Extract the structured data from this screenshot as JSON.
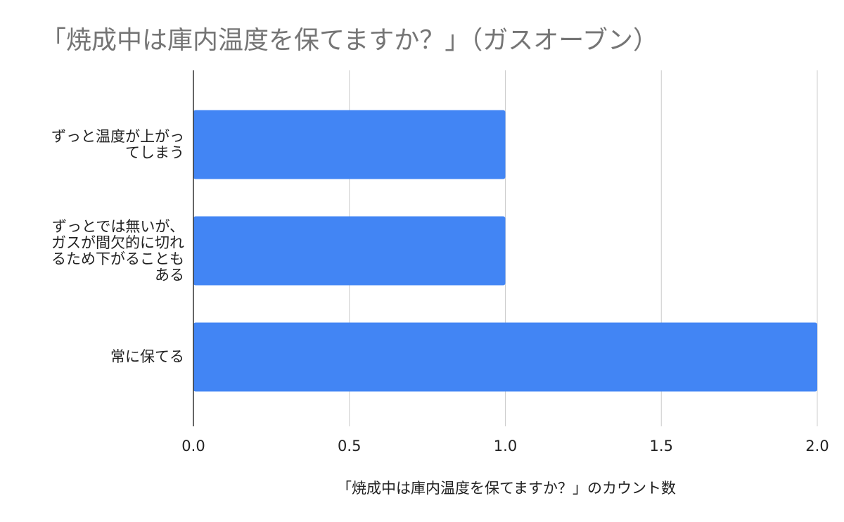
{
  "chart_data": {
    "type": "bar",
    "orientation": "horizontal",
    "title": "「焼成中は庫内温度を保てますか？」（ガスオーブン）",
    "xlabel": "「焼成中は庫内温度を保てますか？」のカウント数",
    "ylabel": "",
    "categories": [
      {
        "lines": [
          "ずっと温度が上がっ",
          "てしまう"
        ]
      },
      {
        "lines": [
          "ずっとでは無いが、",
          "ガスが間欠的に切れ",
          "るため下がることも",
          "ある"
        ]
      },
      {
        "lines": [
          "常に保てる"
        ]
      }
    ],
    "values": [
      1,
      1,
      2
    ],
    "xlim": [
      0,
      2
    ],
    "x_ticks": [
      0,
      0.5,
      1,
      1.5,
      2
    ],
    "x_tick_labels": [
      "0.0",
      "0.5",
      "1.0",
      "1.5",
      "2.0"
    ],
    "grid": "vertical",
    "legend": "none",
    "colors": {
      "bar": "#4285f4",
      "grid": "#cccccc",
      "axis": "#333333",
      "title": "#757575",
      "text": "#222222"
    }
  }
}
